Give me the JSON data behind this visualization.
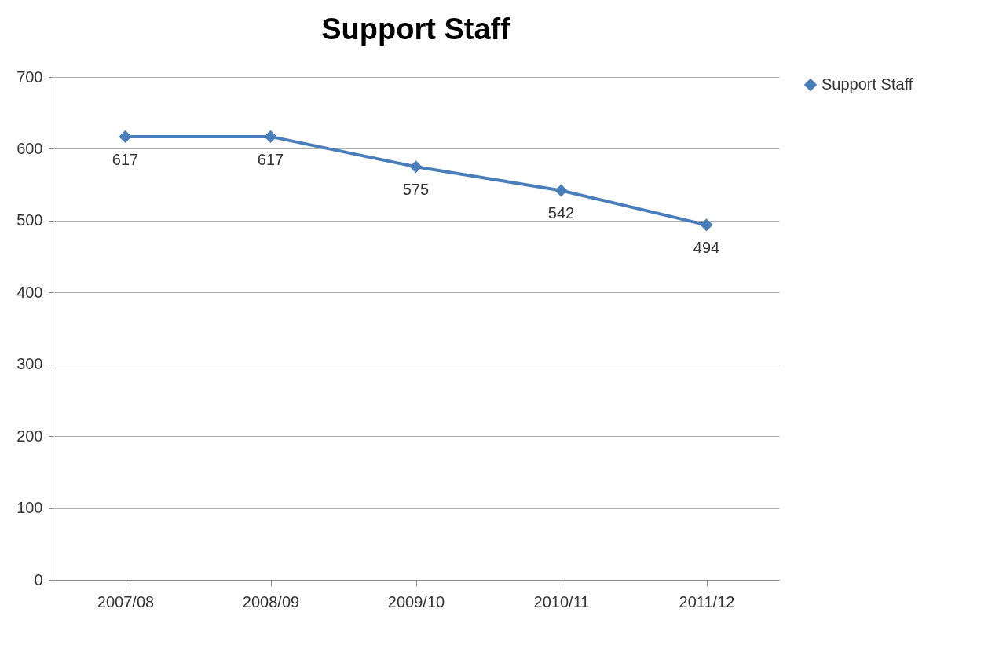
{
  "chart_data": {
    "type": "line",
    "title": "Support Staff",
    "categories": [
      "2007/08",
      "2008/09",
      "2009/10",
      "2010/11",
      "2011/12"
    ],
    "series": [
      {
        "name": "Support Staff",
        "color": "#4a7ebb",
        "values": [
          617,
          617,
          575,
          542,
          494
        ]
      }
    ],
    "ylim": [
      0,
      700
    ],
    "yticks": [
      0,
      100,
      200,
      300,
      400,
      500,
      600,
      700
    ],
    "grid": "y",
    "legend": "right",
    "marker": "diamond",
    "data_labels": true
  }
}
